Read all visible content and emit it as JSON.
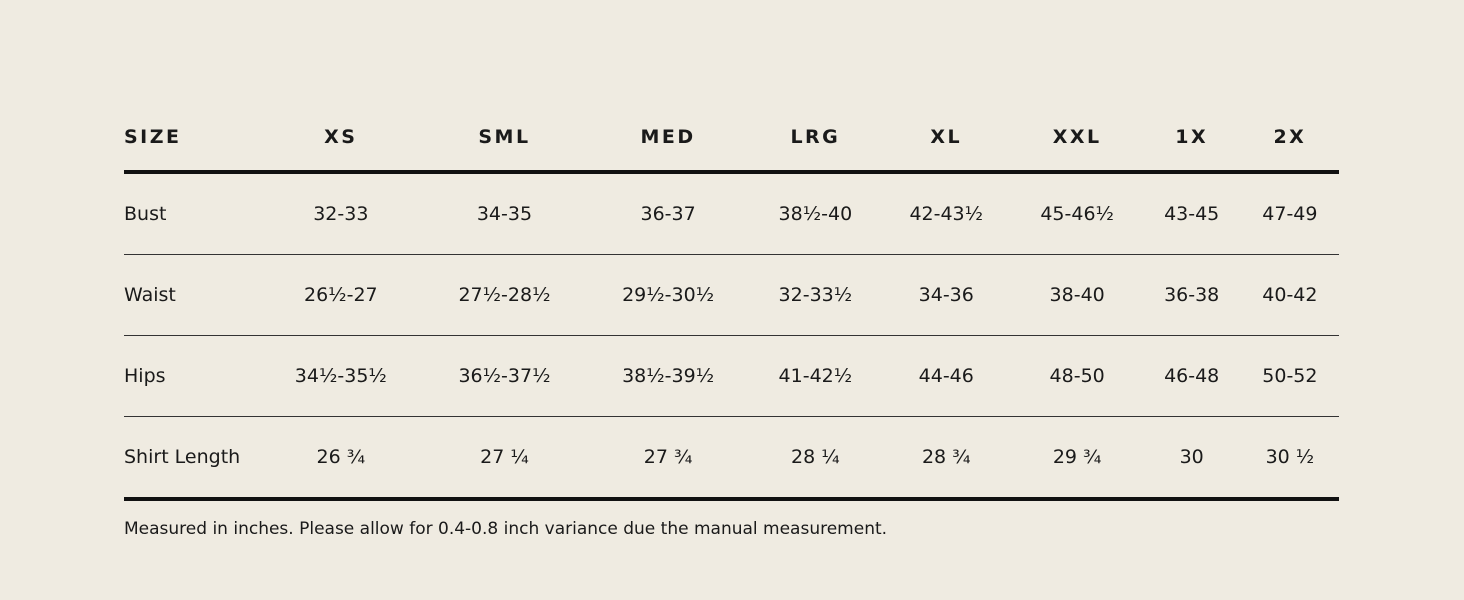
{
  "table": {
    "header": [
      "SIZE",
      "XS",
      "SML",
      "MED",
      "LRG",
      "XL",
      "XXL",
      "1X",
      "2X"
    ],
    "rows": [
      [
        "Bust",
        "32-33",
        "34-35",
        "36-37",
        "38½-40",
        "42-43½",
        "45-46½",
        "43-45",
        "47-49"
      ],
      [
        "Waist",
        "26½-27",
        "27½-28½",
        "29½-30½",
        "32-33½",
        "34-36",
        "38-40",
        "36-38",
        "40-42"
      ],
      [
        "Hips",
        "34½-35½",
        "36½-37½",
        "38½-39½",
        "41-42½",
        "44-46",
        "48-50",
        "46-48",
        "50-52"
      ],
      [
        "Shirt Length",
        "26 ¾",
        "27 ¼",
        "27 ¾",
        "28 ¼",
        "28 ¾",
        "29 ¾",
        "30",
        "30 ½"
      ]
    ]
  },
  "note": "Measured in inches. Please allow for 0.4-0.8 inch variance due the manual measurement."
}
